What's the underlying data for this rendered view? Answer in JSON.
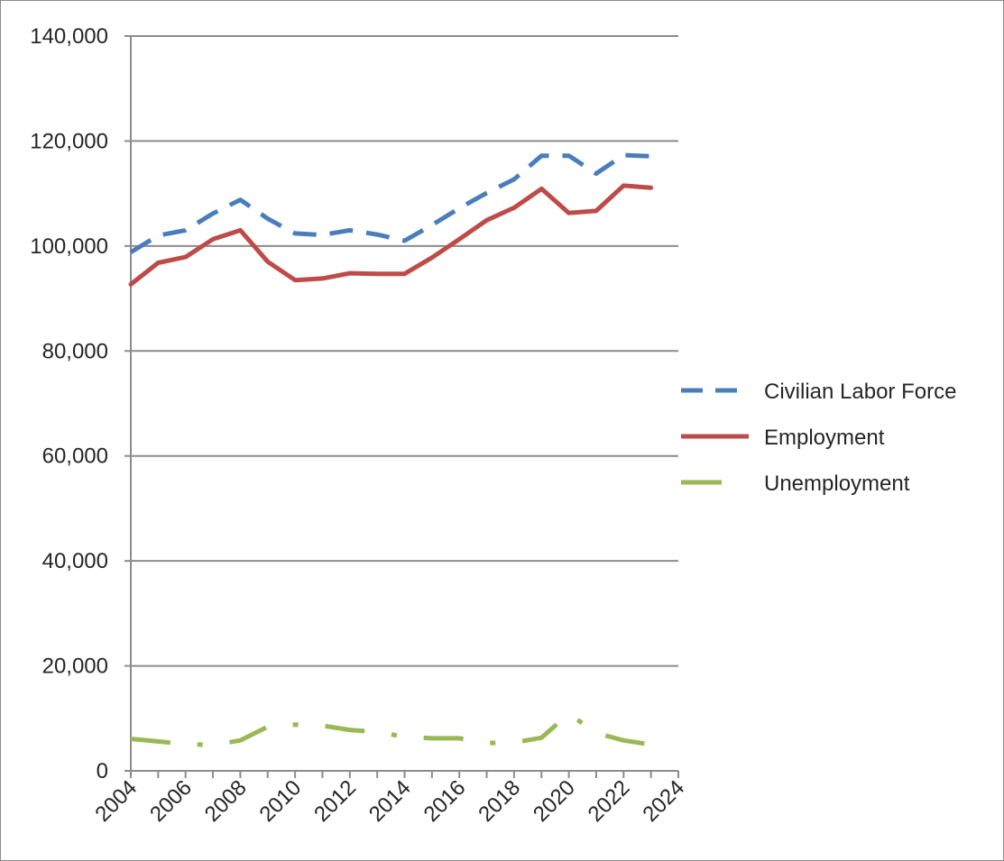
{
  "chart_data": {
    "type": "line",
    "title": "",
    "xlabel": "",
    "ylabel": "",
    "xlim": [
      2004,
      2024
    ],
    "ylim": [
      0,
      140000
    ],
    "x_ticks": [
      "2004",
      "2006",
      "2008",
      "2010",
      "2012",
      "2014",
      "2016",
      "2018",
      "2020",
      "2022",
      "2024"
    ],
    "y_ticks": [
      "0",
      "20,000",
      "40,000",
      "60,000",
      "80,000",
      "100,000",
      "120,000",
      "140,000"
    ],
    "grid": true,
    "legend_position": "right",
    "x": [
      2004,
      2005,
      2006,
      2007,
      2008,
      2009,
      2010,
      2011,
      2012,
      2013,
      2014,
      2015,
      2016,
      2017,
      2018,
      2019,
      2020,
      2021,
      2022,
      2023
    ],
    "series": [
      {
        "name": "Civilian Labor Force",
        "color": "#4a7ebb",
        "style": "dashed",
        "values": [
          98800,
          102000,
          103000,
          106200,
          108800,
          105200,
          102400,
          102100,
          103000,
          102200,
          101000,
          104000,
          107200,
          110100,
          112700,
          117200,
          117200,
          113800,
          117300,
          117100
        ]
      },
      {
        "name": "Employment",
        "color": "#be4b48",
        "style": "solid",
        "values": [
          92700,
          96800,
          97900,
          101300,
          103000,
          97000,
          93500,
          93800,
          94800,
          94700,
          94700,
          97800,
          101300,
          104900,
          107300,
          110900,
          106300,
          106700,
          111500,
          111100
        ]
      },
      {
        "name": "Unemployment",
        "color": "#98b954",
        "style": "dash-dot",
        "values": [
          6100,
          5600,
          5100,
          4900,
          5800,
          8400,
          8800,
          8600,
          7800,
          7400,
          6500,
          6200,
          6200,
          5300,
          5400,
          6300,
          10900,
          7200,
          5800,
          5000
        ]
      }
    ]
  }
}
